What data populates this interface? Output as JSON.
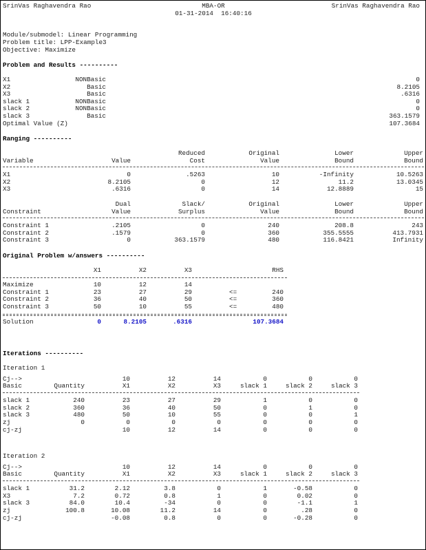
{
  "header": {
    "author_left": "SrinVas Raghavendra Rao",
    "program": "MBA-OR",
    "datetime": "01-31-2014  16:40:16",
    "author_right": "SrinVas Raghavendra Rao"
  },
  "meta": {
    "module": "Module/submodel: Linear Programming",
    "title": "Problem title: LPP-Example3",
    "objective": "Objective: Maximize"
  },
  "results": {
    "heading": "Problem and Results ----------",
    "rows": [
      {
        "var": "X1",
        "status": "NONBasic",
        "value": "0"
      },
      {
        "var": "X2",
        "status": "Basic",
        "value": "8.2105"
      },
      {
        "var": "X3",
        "status": "Basic",
        "value": ".6316"
      },
      {
        "var": "slack 1",
        "status": "NONBasic",
        "value": "0"
      },
      {
        "var": "slack 2",
        "status": "NONBasic",
        "value": "0"
      },
      {
        "var": "slack 3",
        "status": "Basic",
        "value": "363.1579"
      },
      {
        "var": "Optimal Value (Z)",
        "status": "",
        "value": "107.3684"
      }
    ]
  },
  "ranging": {
    "heading": "Ranging ----------",
    "var_header": {
      "top": [
        "",
        "",
        "Reduced",
        "Original",
        "Lower",
        "Upper"
      ],
      "bottom": [
        "Variable",
        "Value",
        "Cost",
        "Value",
        "Bound",
        "Bound"
      ]
    },
    "var_rows": [
      [
        "X1",
        "0",
        ".5263",
        "10",
        "-Infinity",
        "10.5263"
      ],
      [
        "X2",
        "8.2105",
        "0",
        "12",
        "11.2",
        "13.0345"
      ],
      [
        "X3",
        ".6316",
        "0",
        "14",
        "12.8889",
        "15"
      ]
    ],
    "con_header": {
      "top": [
        "",
        "Dual",
        "Slack/",
        "Original",
        "Lower",
        "Upper"
      ],
      "bottom": [
        "Constraint",
        "Value",
        "Surplus",
        "Value",
        "Bound",
        "Bound"
      ]
    },
    "con_rows": [
      [
        "Constraint 1",
        ".2105",
        "0",
        "240",
        "208.8",
        "243"
      ],
      [
        "Constraint 2",
        ".1579",
        "0",
        "360",
        "355.5555",
        "413.7931"
      ],
      [
        "Constraint 3",
        "0",
        "363.1579",
        "480",
        "116.8421",
        "Infinity"
      ]
    ]
  },
  "original": {
    "heading": "Original Problem w/answers ----------",
    "header": [
      "X1",
      "X2",
      "X3",
      "RHS"
    ],
    "rows": [
      {
        "label": "Maximize",
        "x1": "10",
        "x2": "12",
        "x3": "14",
        "sign": "",
        "rhs": ""
      },
      {
        "label": "Constraint 1",
        "x1": "23",
        "x2": "27",
        "x3": "29",
        "sign": "<=",
        "rhs": "240"
      },
      {
        "label": "Constraint 2",
        "x1": "36",
        "x2": "40",
        "x3": "50",
        "sign": "<=",
        "rhs": "360"
      },
      {
        "label": "Constraint 3",
        "x1": "50",
        "x2": "10",
        "x3": "55",
        "sign": "<=",
        "rhs": "480"
      }
    ],
    "solution": {
      "label": "Solution",
      "x1": "0",
      "x2": "8.2105",
      "x3": ".6316",
      "rhs": "107.3684"
    }
  },
  "iterations": {
    "heading": "Iterations ----------",
    "items": [
      {
        "title": "Iteration 1",
        "cj_label": "Cj-->",
        "cj": [
          "10",
          "12",
          "14",
          "0",
          "0",
          "0"
        ],
        "header": [
          "Basic",
          "Quantity",
          "X1",
          "X2",
          "X3",
          "slack 1",
          "slack 2",
          "slack 3"
        ],
        "rows": [
          [
            "slack 1",
            "240",
            "23",
            "27",
            "29",
            "1",
            "0",
            "0"
          ],
          [
            "slack 2",
            "360",
            "36",
            "40",
            "50",
            "0",
            "1",
            "0"
          ],
          [
            "slack 3",
            "480",
            "50",
            "10",
            "55",
            "0",
            "0",
            "1"
          ],
          [
            "zj",
            "0",
            "0",
            "0",
            "0",
            "0",
            "0",
            "0"
          ],
          [
            "cj-zj",
            "",
            "10",
            "12",
            "14",
            "0",
            "0",
            "0"
          ]
        ]
      },
      {
        "title": "Iteration 2",
        "cj_label": "Cj-->",
        "cj": [
          "10",
          "12",
          "14",
          "0",
          "0",
          "0"
        ],
        "header": [
          "Basic",
          "Quantity",
          "X1",
          "X2",
          "X3",
          "slack 1",
          "slack 2",
          "slack 3"
        ],
        "rows": [
          [
            "slack 1",
            "31.2",
            "2.12",
            "3.8",
            "0",
            "1",
            "-0.58",
            "0"
          ],
          [
            "X3",
            "7.2",
            "0.72",
            "0.8",
            "1",
            "0",
            "0.02",
            "0"
          ],
          [
            "slack 3",
            "84.0",
            "10.4",
            "-34",
            "0",
            "0",
            "-1.1",
            "1"
          ],
          [
            "zj",
            "100.8",
            "10.08",
            "11.2",
            "14",
            "0",
            ".28",
            "0"
          ],
          [
            "cj-zj",
            "",
            "-0.08",
            "0.8",
            "0",
            "0",
            "-0.28",
            "0"
          ]
        ]
      }
    ]
  },
  "colors": {
    "solution_values": "#1515c8",
    "text": "#222222"
  }
}
